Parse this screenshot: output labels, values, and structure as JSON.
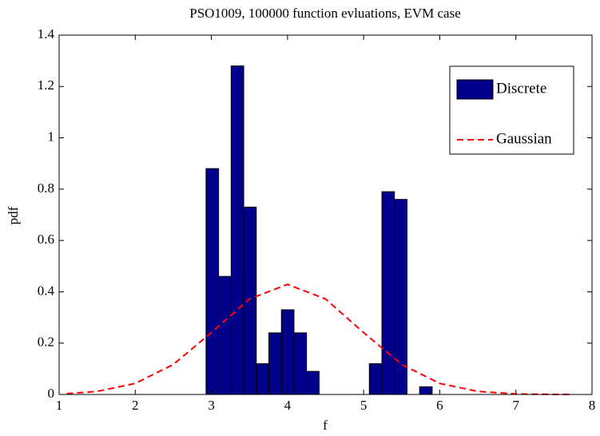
{
  "chart_data": {
    "type": "histogram",
    "title": "PSO1009, 100000 function evluations, EVM case",
    "xlabel": "f",
    "ylabel": "pdf",
    "bins": [
      2.93,
      3.095,
      3.26,
      3.425,
      3.59,
      3.755,
      3.92,
      4.085,
      4.25,
      4.415,
      4.58,
      4.745,
      4.91,
      5.075,
      5.24,
      5.405,
      5.57,
      5.735,
      5.9
    ],
    "series": [
      {
        "name": "Discrete",
        "type": "histogram",
        "color": "#00008b",
        "values": [
          0.88,
          0.46,
          1.28,
          0.73,
          0.12,
          0.24,
          0.33,
          0.24,
          0.09,
          0,
          0,
          0,
          0,
          0.12,
          0.79,
          0.76,
          0,
          0.03
        ]
      },
      {
        "name": "Gaussian",
        "type": "line",
        "color": "#ff0000",
        "linestyle": "dashed",
        "x": [
          1.1,
          1.5,
          2,
          2.5,
          3,
          3.5,
          4,
          4.5,
          5,
          5.5,
          6,
          6.5,
          7,
          7.5,
          7.7
        ],
        "values": [
          0.003,
          0.012,
          0.043,
          0.117,
          0.241,
          0.372,
          0.429,
          0.372,
          0.241,
          0.117,
          0.043,
          0.012,
          0.002,
          0.0004,
          0.0002
        ]
      }
    ],
    "xlim": [
      1,
      8
    ],
    "ylim": [
      0,
      1.4
    ],
    "xticks": [
      1,
      2,
      3,
      4,
      5,
      6,
      7,
      8
    ],
    "yticks": [
      0,
      0.2,
      0.4,
      0.6,
      0.8,
      1,
      1.2,
      1.4
    ],
    "legend": "northeast",
    "grid": false
  }
}
